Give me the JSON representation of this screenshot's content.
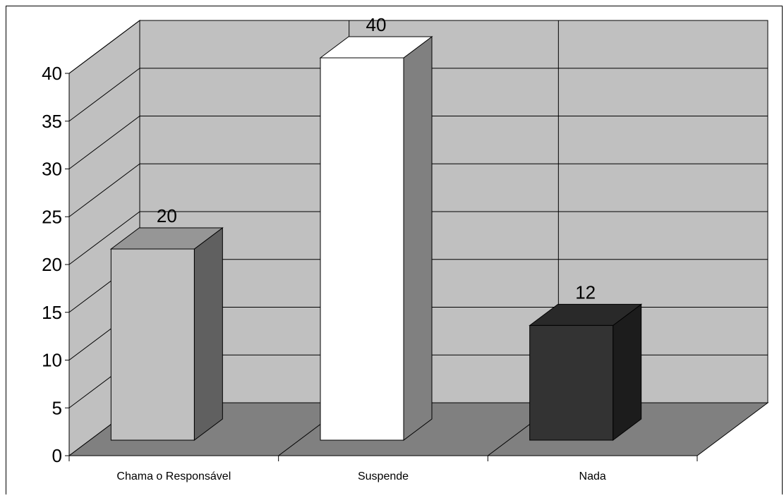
{
  "chart_data": {
    "type": "bar",
    "style": "3d-column",
    "categories": [
      "Chama o Responsável",
      "Suspende",
      "Nada"
    ],
    "values": [
      20,
      40,
      12
    ],
    "data_labels": [
      "20",
      "40",
      "12"
    ],
    "bar_colors": [
      "#c0c0c0",
      "#ffffff",
      "#333333"
    ],
    "ylim": [
      0,
      40
    ],
    "yticks": [
      "0",
      "5",
      "10",
      "15",
      "20",
      "25",
      "30",
      "35",
      "40"
    ],
    "grid": true,
    "legend": "none",
    "wall_color": "#c0c0c0",
    "floor_color": "#808080"
  }
}
